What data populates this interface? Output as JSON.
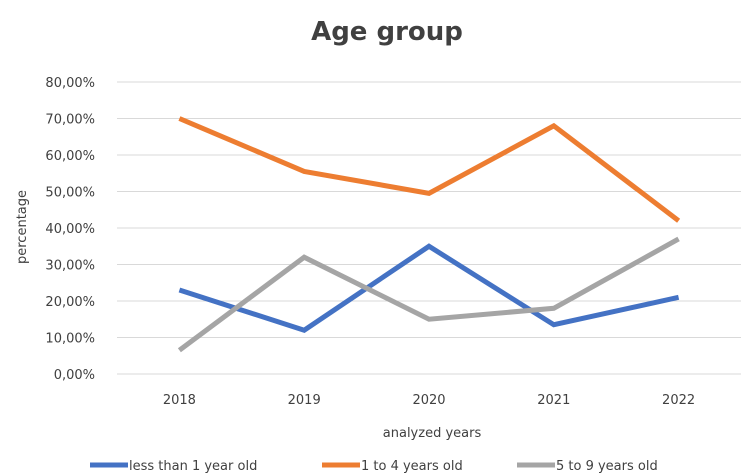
{
  "chart_data": {
    "type": "line",
    "title": "Age group",
    "xlabel": "analyzed years",
    "ylabel": "percentage",
    "categories": [
      "2018",
      "2019",
      "2020",
      "2021",
      "2022"
    ],
    "ylim": [
      0,
      80
    ],
    "yticks": [
      "0,00%",
      "10,00%",
      "20,00%",
      "30,00%",
      "40,00%",
      "50,00%",
      "60,00%",
      "70,00%",
      "80,00%"
    ],
    "grid": true,
    "legend_position": "bottom",
    "series": [
      {
        "name": "less than 1 year old",
        "color": "#4472c4",
        "values": [
          23,
          12,
          35,
          13.5,
          21
        ]
      },
      {
        "name": "1 to 4 years old",
        "color": "#ed7d31",
        "values": [
          70,
          55.5,
          49.5,
          68,
          42
        ]
      },
      {
        "name": "5 to 9 years old",
        "color": "#a5a5a5",
        "values": [
          6.5,
          32,
          15,
          18,
          37
        ]
      }
    ]
  }
}
